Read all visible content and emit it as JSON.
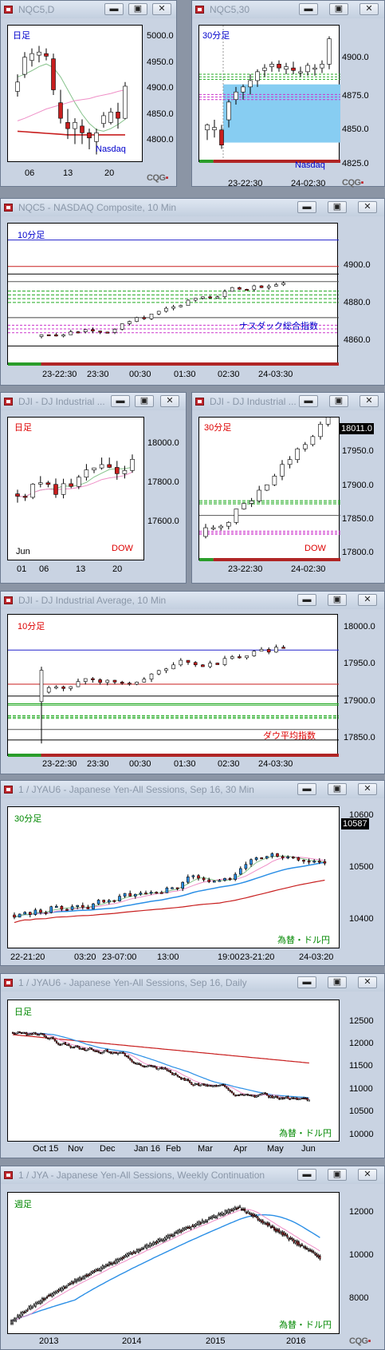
{
  "windows": [
    {
      "id": "w1",
      "title": "NQC5,D",
      "period": "日足",
      "index_label": "Nasdaq",
      "period_color": "#0000cc",
      "index_color": "#0000cc",
      "yticks": [
        "5000.0",
        "4950.0",
        "4900.0",
        "4850.0",
        "4800.0"
      ],
      "xticks": [
        "06",
        "13",
        "20"
      ]
    },
    {
      "id": "w2",
      "title": "NQC5,30",
      "period": "30分足",
      "index_label": "Nasdaq",
      "period_color": "#0000cc",
      "index_color": "#0000cc",
      "yticks": [
        "4900.0",
        "4875.0",
        "4850.0",
        "4825.0"
      ],
      "xticks": [
        "23-22:30",
        "24-02:30"
      ]
    },
    {
      "id": "w3",
      "title": "NQC5 - NASDAQ Composite, 10 Min",
      "period": "10分足",
      "index_label": "ナスダック総合指数",
      "period_color": "#0000cc",
      "index_color": "#0000cc",
      "yticks": [
        "4900.0",
        "4880.0",
        "4860.0"
      ],
      "xticks": [
        "23-22:30",
        "23:30",
        "00:30",
        "01:30",
        "02:30",
        "24-03:30"
      ]
    },
    {
      "id": "w4",
      "title": "DJI - DJ Industrial ...",
      "period": "日足",
      "index_label": "DOW",
      "period_color": "#dd0000",
      "index_color": "#dd0000",
      "yticks": [
        "18000.0",
        "17800.0",
        "17600.0"
      ],
      "xticks": [
        "01",
        "06",
        "13",
        "20"
      ],
      "month_label": "Jun"
    },
    {
      "id": "w5",
      "title": "DJI - DJ Industrial ...",
      "period": "30分足",
      "index_label": "DOW",
      "period_color": "#dd0000",
      "index_color": "#dd0000",
      "yticks": [
        "17950.0",
        "17900.0",
        "17850.0",
        "17800.0"
      ],
      "xticks": [
        "23-22:30",
        "24-02:30"
      ],
      "last_price": "18011.0"
    },
    {
      "id": "w6",
      "title": "DJI - DJ Industrial Average, 10 Min",
      "period": "10分足",
      "index_label": "ダウ平均指数",
      "period_color": "#dd0000",
      "index_color": "#dd0000",
      "yticks": [
        "18000.0",
        "17950.0",
        "17900.0",
        "17850.0"
      ],
      "xticks": [
        "23-22:30",
        "23:30",
        "00:30",
        "01:30",
        "02:30",
        "24-03:30"
      ]
    },
    {
      "id": "w7",
      "title": "1 / JYAU6 - Japanese Yen-All Sessions, Sep 16, 30 Min",
      "period": "30分足",
      "index_label": "為替・ドル円",
      "period_color": "#008800",
      "index_color": "#008800",
      "yticks": [
        "10600",
        "10500",
        "10400"
      ],
      "xticks": [
        "22-21:20",
        "03:20",
        "23-07:00",
        "13:00",
        "19:00",
        "23-21:20",
        "24-03:20"
      ],
      "last_price": "10587"
    },
    {
      "id": "w8",
      "title": "1 / JYAU6 - Japanese Yen-All Sessions, Sep 16, Daily",
      "period": "日足",
      "index_label": "為替・ドル円",
      "period_color": "#008800",
      "index_color": "#008800",
      "yticks": [
        "12500",
        "12000",
        "11500",
        "11000",
        "10500",
        "10000"
      ],
      "xticks": [
        "Oct 15",
        "Nov",
        "Dec",
        "Jan 16",
        "Feb",
        "Mar",
        "Apr",
        "May",
        "Jun"
      ]
    },
    {
      "id": "w9",
      "title": "1 / JYA - Japanese Yen-All Sessions, Weekly Continuation",
      "period": "週足",
      "index_label": "為替・ドル円",
      "period_color": "#008800",
      "index_color": "#008800",
      "yticks": [
        "12000",
        "10000",
        "8000"
      ],
      "xticks": [
        "2013",
        "2014",
        "2015",
        "2016"
      ]
    }
  ],
  "buttons": {
    "minimize": "▬",
    "restore": "▣",
    "close": "✕"
  },
  "cqg": {
    "text": "CQG"
  },
  "chart_data": [
    {
      "type": "candlestick",
      "window": "NQC5,D",
      "ylim": [
        4770,
        5020
      ],
      "candles": [
        [
          4902,
          4935,
          4892,
          4920
        ],
        [
          4935,
          4978,
          4928,
          4968
        ],
        [
          4962,
          4985,
          4950,
          4975
        ],
        [
          4972,
          4990,
          4958,
          4978
        ],
        [
          4975,
          4985,
          4962,
          4970
        ],
        [
          4965,
          4975,
          4895,
          4905
        ],
        [
          4880,
          4905,
          4840,
          4850
        ],
        [
          4842,
          4868,
          4810,
          4830
        ],
        [
          4830,
          4850,
          4800,
          4842
        ],
        [
          4835,
          4848,
          4800,
          4822
        ],
        [
          4822,
          4830,
          4790,
          4812
        ],
        [
          4805,
          4830,
          4780,
          4822
        ],
        [
          4840,
          4862,
          4832,
          4855
        ],
        [
          4842,
          4870,
          4838,
          4862
        ],
        [
          4862,
          4880,
          4830,
          4850
        ],
        [
          4850,
          4920,
          4848,
          4912
        ]
      ],
      "series": [
        {
          "name": "ma_green",
          "values": [
            4930,
            4935,
            4942,
            4950,
            4955,
            4948,
            4930,
            4905,
            4880,
            4858,
            4840,
            4828,
            4825,
            4830,
            4838,
            4848
          ]
        },
        {
          "name": "ma_pink",
          "values": [
            4845,
            4850,
            4856,
            4862,
            4868,
            4872,
            4876,
            4880,
            4884,
            4886,
            4888,
            4892,
            4895,
            4898,
            4902,
            4905
          ]
        },
        {
          "name": "ma_red",
          "values": [
            4825,
            4824,
            4823,
            4822,
            4821,
            4820,
            4819,
            4818,
            4818,
            4818,
            4818,
            4818,
            4818,
            4818,
            4818,
            4818
          ]
        }
      ]
    },
    {
      "type": "candlestick",
      "window": "NQC5,30",
      "ylim": [
        4817,
        4918
      ],
      "candles": [
        [
          4838,
          4843,
          4830,
          4842
        ],
        [
          4838,
          4846,
          4832,
          4840
        ],
        [
          4838,
          4842,
          4823,
          4826
        ],
        [
          4846,
          4862,
          4840,
          4860
        ],
        [
          4862,
          4872,
          4858,
          4868
        ],
        [
          4868,
          4874,
          4862,
          4872
        ],
        [
          4872,
          4882,
          4866,
          4877
        ],
        [
          4877,
          4886,
          4872,
          4884
        ],
        [
          4885,
          4890,
          4880,
          4887
        ],
        [
          4888,
          4892,
          4884,
          4890
        ],
        [
          4890,
          4893,
          4884,
          4887
        ],
        [
          4886,
          4891,
          4882,
          4888
        ],
        [
          4887,
          4892,
          4882,
          4885
        ],
        [
          4884,
          4888,
          4880,
          4884
        ],
        [
          4884,
          4891,
          4881,
          4889
        ],
        [
          4886,
          4890,
          4881,
          4887
        ],
        [
          4887,
          4893,
          4883,
          4890
        ],
        [
          4890,
          4912,
          4886,
          4910
        ]
      ]
    },
    {
      "type": "candlestick",
      "window": "NQC5 - NASDAQ Composite, 10 Min",
      "ylim": [
        4848,
        4918
      ]
    },
    {
      "type": "candlestick",
      "window": "DJI - DJ Industrial Daily",
      "ylim": [
        17480,
        18080
      ]
    },
    {
      "type": "candlestick",
      "window": "DJI - DJ Industrial 30 Min",
      "ylim": [
        17770,
        18025
      ]
    },
    {
      "type": "candlestick",
      "window": "DJI - DJ Industrial Average, 10 Min",
      "ylim": [
        17830,
        18020
      ]
    },
    {
      "type": "candlestick",
      "window": "JYAU6 30 Min",
      "ylim": [
        10375,
        10625
      ]
    },
    {
      "type": "candlestick",
      "window": "JYAU6 Daily",
      "ylim": [
        9900,
        12700
      ]
    },
    {
      "type": "candlestick",
      "window": "JYA Weekly",
      "ylim": [
        7700,
        12700
      ]
    }
  ]
}
